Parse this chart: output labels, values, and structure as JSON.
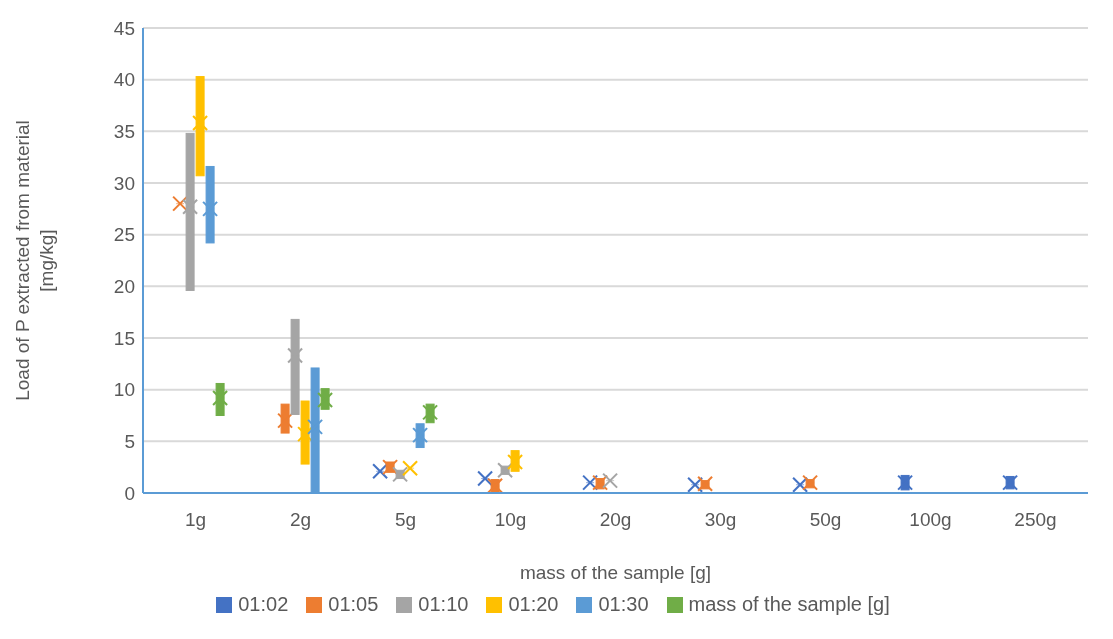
{
  "chart_data": {
    "type": "box",
    "xlabel": "mass of the sample [g]",
    "ylabel": "Load of P extracted from material [mg/kg]",
    "categories": [
      "1g",
      "2g",
      "5g",
      "10g",
      "20g",
      "30g",
      "50g",
      "100g",
      "250g"
    ],
    "ylim": [
      0,
      45
    ],
    "yticks": [
      0,
      5,
      10,
      15,
      20,
      25,
      30,
      35,
      40,
      45
    ],
    "grid": "y",
    "legend": "bottom",
    "marker": "cross",
    "series": [
      {
        "name": "01:02",
        "color": "#4472c4",
        "boxes": [
          null,
          null,
          {
            "low": 2.1,
            "q1": 2.1,
            "median": 2.1,
            "q3": 2.1,
            "high": 2.1,
            "mean": 2.1
          },
          {
            "low": 1.4,
            "q1": 1.4,
            "median": 1.4,
            "q3": 1.4,
            "high": 1.4,
            "mean": 1.4
          },
          {
            "low": 1.0,
            "q1": 1.0,
            "median": 1.0,
            "q3": 1.0,
            "high": 1.0,
            "mean": 1.0
          },
          {
            "low": 0.8,
            "q1": 0.8,
            "median": 0.8,
            "q3": 0.8,
            "high": 0.8,
            "mean": 0.8
          },
          {
            "low": 0.8,
            "q1": 0.8,
            "median": 0.8,
            "q3": 0.8,
            "high": 0.8,
            "mean": 0.8
          },
          {
            "low": 0.3,
            "q1": 0.3,
            "median": 1.0,
            "q3": 1.7,
            "high": 1.7,
            "mean": 1.0
          },
          {
            "low": 0.4,
            "q1": 0.4,
            "median": 1.0,
            "q3": 1.6,
            "high": 1.6,
            "mean": 1.0
          }
        ]
      },
      {
        "name": "01:05",
        "color": "#ed7d31",
        "boxes": [
          {
            "low": 28.0,
            "q1": 28.0,
            "median": 28.0,
            "q3": 28.0,
            "high": 28.0,
            "mean": 28.0
          },
          {
            "low": 5.8,
            "q1": 5.8,
            "median": 7.0,
            "q3": 8.6,
            "high": 8.6,
            "mean": 7.0
          },
          {
            "low": 2.0,
            "q1": 2.0,
            "median": 2.5,
            "q3": 3.0,
            "high": 3.0,
            "mean": 2.5
          },
          {
            "low": 0,
            "q1": 0,
            "median": 0.7,
            "q3": 1.3,
            "high": 1.3,
            "mean": 0.7
          },
          {
            "low": 0.4,
            "q1": 0.4,
            "median": 1.0,
            "q3": 1.4,
            "high": 1.4,
            "mean": 1.0
          },
          {
            "low": 0.4,
            "q1": 0.4,
            "median": 0.9,
            "q3": 1.2,
            "high": 1.2,
            "mean": 0.9
          },
          {
            "low": 0.5,
            "q1": 0.5,
            "median": 1.0,
            "q3": 1.3,
            "high": 1.3,
            "mean": 1.0
          },
          null,
          null
        ]
      },
      {
        "name": "01:10",
        "color": "#a5a5a5",
        "boxes": [
          {
            "low": 19.6,
            "q1": 19.6,
            "median": 27.7,
            "q3": 34.8,
            "high": 34.8,
            "mean": 27.7
          },
          {
            "low": 7.6,
            "q1": 7.6,
            "median": 13.3,
            "q3": 16.8,
            "high": 16.8,
            "mean": 13.3
          },
          {
            "low": 1.4,
            "q1": 1.4,
            "median": 1.8,
            "q3": 2.2,
            "high": 2.2,
            "mean": 1.8
          },
          {
            "low": 1.8,
            "q1": 1.8,
            "median": 2.2,
            "q3": 2.6,
            "high": 2.6,
            "mean": 2.2
          },
          {
            "low": 1.2,
            "q1": 1.2,
            "median": 1.2,
            "q3": 1.2,
            "high": 1.2,
            "mean": 1.2
          },
          null,
          null,
          null,
          null
        ]
      },
      {
        "name": "01:20",
        "color": "#ffc000",
        "boxes": [
          {
            "low": 30.7,
            "q1": 30.7,
            "median": 35.8,
            "q3": 40.3,
            "high": 40.3,
            "mean": 35.8
          },
          {
            "low": 2.8,
            "q1": 2.8,
            "median": 5.7,
            "q3": 8.9,
            "high": 8.9,
            "mean": 5.7
          },
          {
            "low": 2.4,
            "q1": 2.4,
            "median": 2.4,
            "q3": 2.4,
            "high": 2.4,
            "mean": 2.4
          },
          {
            "low": 2.1,
            "q1": 2.1,
            "median": 3.0,
            "q3": 4.1,
            "high": 4.1,
            "mean": 3.0
          },
          null,
          null,
          null,
          null,
          null
        ]
      },
      {
        "name": "01:30",
        "color": "#5b9bd5",
        "boxes": [
          {
            "low": 24.2,
            "q1": 24.2,
            "median": 27.5,
            "q3": 31.6,
            "high": 31.6,
            "mean": 27.5
          },
          {
            "low": 0,
            "q1": 0,
            "median": 6.4,
            "q3": 12.1,
            "high": 12.1,
            "mean": 6.4
          },
          {
            "low": 4.4,
            "q1": 4.4,
            "median": 5.6,
            "q3": 6.7,
            "high": 6.7,
            "mean": 5.6
          },
          null,
          null,
          null,
          null,
          null,
          null
        ]
      },
      {
        "name": "mass of the sample [g]",
        "color": "#70ad47",
        "boxes": [
          {
            "low": 7.5,
            "q1": 7.5,
            "median": 9.2,
            "q3": 10.6,
            "high": 10.6,
            "mean": 9.2
          },
          {
            "low": 8.1,
            "q1": 8.1,
            "median": 9.0,
            "q3": 10.1,
            "high": 10.1,
            "mean": 9.0
          },
          {
            "low": 6.8,
            "q1": 6.8,
            "median": 7.8,
            "q3": 8.6,
            "high": 8.6,
            "mean": 7.8
          },
          null,
          null,
          null,
          null,
          null,
          null
        ]
      }
    ]
  }
}
